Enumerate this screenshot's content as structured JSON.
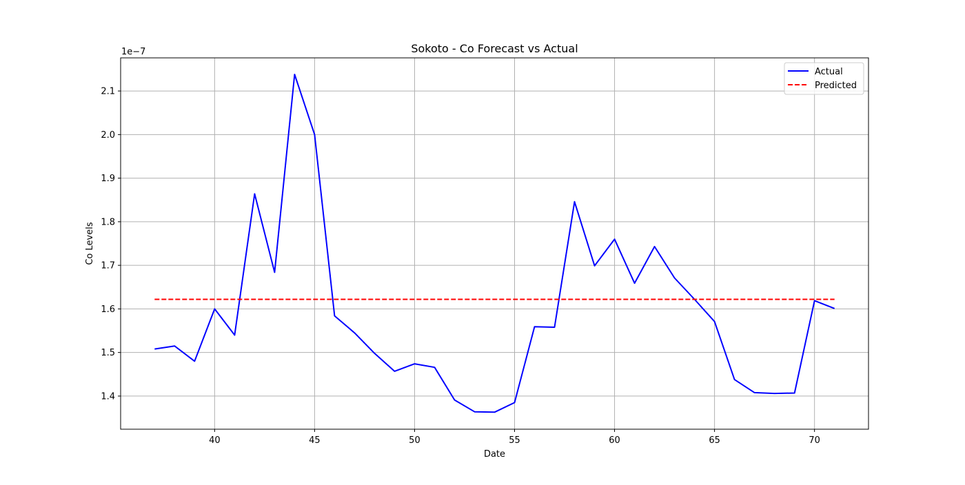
{
  "chart_data": {
    "type": "line",
    "title": "Sokoto - Co Forecast vs Actual",
    "xlabel": "Date",
    "ylabel": "Co Levels",
    "y_offset_label": "1e−7",
    "y_scale_exponent": -7,
    "xlim": [
      35.3,
      72.7
    ],
    "ylim": [
      1.324,
      2.176
    ],
    "x_ticks": [
      40,
      45,
      50,
      55,
      60,
      65,
      70
    ],
    "y_ticks": [
      1.4,
      1.5,
      1.6,
      1.7,
      1.8,
      1.9,
      2.0,
      2.1
    ],
    "grid": true,
    "legend_position": "top-right",
    "x": [
      37,
      38,
      39,
      40,
      41,
      42,
      43,
      44,
      45,
      46,
      47,
      48,
      49,
      50,
      51,
      52,
      53,
      54,
      55,
      56,
      57,
      58,
      59,
      60,
      61,
      62,
      63,
      64,
      65,
      66,
      67,
      68,
      69,
      70,
      71
    ],
    "series": [
      {
        "name": "Actual",
        "color": "#0000ff",
        "style": "solid",
        "values": [
          1.508,
          1.515,
          1.48,
          1.6,
          1.54,
          1.864,
          1.684,
          2.138,
          2.0,
          1.584,
          1.545,
          1.498,
          1.457,
          1.474,
          1.466,
          1.391,
          1.364,
          1.363,
          1.385,
          1.559,
          1.558,
          1.846,
          1.699,
          1.76,
          1.659,
          1.743,
          1.671,
          1.622,
          1.571,
          1.438,
          1.408,
          1.406,
          1.407,
          1.619,
          1.601
        ]
      },
      {
        "name": "Predicted",
        "color": "#ff0000",
        "style": "dashed",
        "values": [
          1.622,
          1.622,
          1.622,
          1.622,
          1.622,
          1.622,
          1.622,
          1.622,
          1.622,
          1.622,
          1.622,
          1.622,
          1.622,
          1.622,
          1.622,
          1.622,
          1.622,
          1.622,
          1.622,
          1.622,
          1.622,
          1.622,
          1.622,
          1.622,
          1.622,
          1.622,
          1.622,
          1.622,
          1.622,
          1.622,
          1.622,
          1.622,
          1.622,
          1.622,
          1.622
        ]
      }
    ]
  }
}
